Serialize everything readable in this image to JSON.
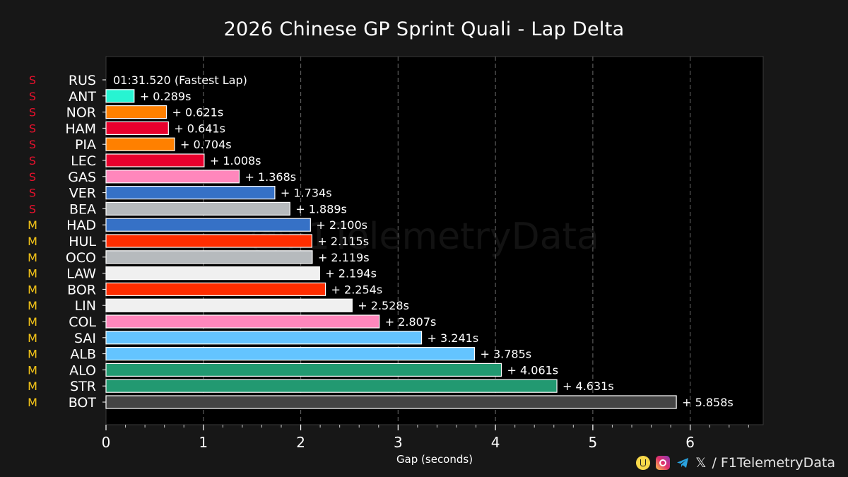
{
  "chart_data": {
    "type": "bar",
    "orientation": "horizontal",
    "title": "2026 Chinese GP Sprint Quali - Lap Delta",
    "xlabel": "Gap (seconds)",
    "ylabel": "",
    "xlim": [
      0,
      6.75
    ],
    "xticks": [
      "0",
      "1",
      "2",
      "3",
      "4",
      "5",
      "6"
    ],
    "grid": true,
    "watermark": "@F1TelemetryData",
    "fastest_label": "01:31.520 (Fastest Lap)",
    "drivers": [
      {
        "name": "RUS",
        "tyre": "S",
        "tyre_color": "#e8112d",
        "gap": 0,
        "label": "",
        "color": "#27f4d2"
      },
      {
        "name": "ANT",
        "tyre": "S",
        "tyre_color": "#e8112d",
        "gap": 0.289,
        "label": "+ 0.289s",
        "color": "#27f4d2"
      },
      {
        "name": "NOR",
        "tyre": "S",
        "tyre_color": "#e8112d",
        "gap": 0.621,
        "label": "+ 0.621s",
        "color": "#ff8000"
      },
      {
        "name": "HAM",
        "tyre": "S",
        "tyre_color": "#e8112d",
        "gap": 0.641,
        "label": "+ 0.641s",
        "color": "#e8002d"
      },
      {
        "name": "PIA",
        "tyre": "S",
        "tyre_color": "#e8112d",
        "gap": 0.704,
        "label": "+ 0.704s",
        "color": "#ff8000"
      },
      {
        "name": "LEC",
        "tyre": "S",
        "tyre_color": "#e8112d",
        "gap": 1.008,
        "label": "+ 1.008s",
        "color": "#e8002d"
      },
      {
        "name": "GAS",
        "tyre": "S",
        "tyre_color": "#e8112d",
        "gap": 1.368,
        "label": "+ 1.368s",
        "color": "#ff87bc"
      },
      {
        "name": "VER",
        "tyre": "S",
        "tyre_color": "#e8112d",
        "gap": 1.734,
        "label": "+ 1.734s",
        "color": "#3671c6"
      },
      {
        "name": "BEA",
        "tyre": "S",
        "tyre_color": "#e8112d",
        "gap": 1.889,
        "label": "+ 1.889s",
        "color": "#b6babd"
      },
      {
        "name": "HAD",
        "tyre": "M",
        "tyre_color": "#f5c518",
        "gap": 2.1,
        "label": "+ 2.100s",
        "color": "#3671c6"
      },
      {
        "name": "HUL",
        "tyre": "M",
        "tyre_color": "#f5c518",
        "gap": 2.115,
        "label": "+ 2.115s",
        "color": "#ff2d00"
      },
      {
        "name": "OCO",
        "tyre": "M",
        "tyre_color": "#f5c518",
        "gap": 2.119,
        "label": "+ 2.119s",
        "color": "#b6babd"
      },
      {
        "name": "LAW",
        "tyre": "M",
        "tyre_color": "#f5c518",
        "gap": 2.194,
        "label": "+ 2.194s",
        "color": "#f0f0f0"
      },
      {
        "name": "BOR",
        "tyre": "M",
        "tyre_color": "#f5c518",
        "gap": 2.254,
        "label": "+ 2.254s",
        "color": "#ff2d00"
      },
      {
        "name": "LIN",
        "tyre": "M",
        "tyre_color": "#f5c518",
        "gap": 2.528,
        "label": "+ 2.528s",
        "color": "#f0f0f0"
      },
      {
        "name": "COL",
        "tyre": "M",
        "tyre_color": "#f5c518",
        "gap": 2.807,
        "label": "+ 2.807s",
        "color": "#ff87bc"
      },
      {
        "name": "SAI",
        "tyre": "M",
        "tyre_color": "#f5c518",
        "gap": 3.241,
        "label": "+ 3.241s",
        "color": "#64c4ff"
      },
      {
        "name": "ALB",
        "tyre": "M",
        "tyre_color": "#f5c518",
        "gap": 3.785,
        "label": "+ 3.785s",
        "color": "#64c4ff"
      },
      {
        "name": "ALO",
        "tyre": "M",
        "tyre_color": "#f5c518",
        "gap": 4.061,
        "label": "+ 4.061s",
        "color": "#229971"
      },
      {
        "name": "STR",
        "tyre": "M",
        "tyre_color": "#f5c518",
        "gap": 4.631,
        "label": "+ 4.631s",
        "color": "#229971"
      },
      {
        "name": "BOT",
        "tyre": "M",
        "tyre_color": "#f5c518",
        "gap": 5.858,
        "label": "+ 5.858s",
        "color": "#444444"
      }
    ]
  },
  "footer": {
    "text": "/ F1TelemetryData",
    "icons": [
      "coffee-icon",
      "instagram-icon",
      "telegram-icon",
      "x-icon"
    ]
  }
}
